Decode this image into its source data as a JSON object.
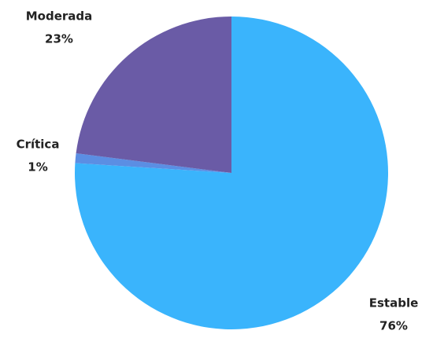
{
  "chart_data": {
    "type": "pie",
    "categories": [
      "Estable",
      "Crítica",
      "Moderada"
    ],
    "values": [
      76,
      1,
      23
    ],
    "value_labels": [
      "76%",
      "1%",
      "23%"
    ],
    "colors": [
      "#3ab4fc",
      "#5b8ee3",
      "#6a5ba6"
    ]
  }
}
